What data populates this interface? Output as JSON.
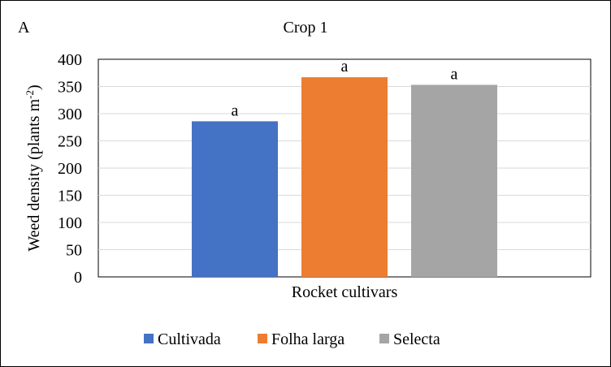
{
  "panel_label": "A",
  "chart_data": {
    "type": "bar",
    "title": "Crop 1",
    "xlabel": "Rocket cultivars",
    "ylabel_main": "Weed density (plants m",
    "ylabel_sup": "-2",
    "ylabel_close": ")",
    "ylim": [
      0,
      400
    ],
    "yticks": [
      "0",
      "50",
      "100",
      "150",
      "200",
      "250",
      "300",
      "350",
      "400"
    ],
    "grid": true,
    "legend_position": "bottom",
    "series": [
      {
        "name": "Cultivada",
        "value": 286,
        "label": "a",
        "color": "#4472C4"
      },
      {
        "name": "Folha larga",
        "value": 367,
        "label": "a",
        "color": "#ED7D31"
      },
      {
        "name": "Selecta",
        "value": 353,
        "label": "a",
        "color": "#A5A5A5"
      }
    ]
  }
}
